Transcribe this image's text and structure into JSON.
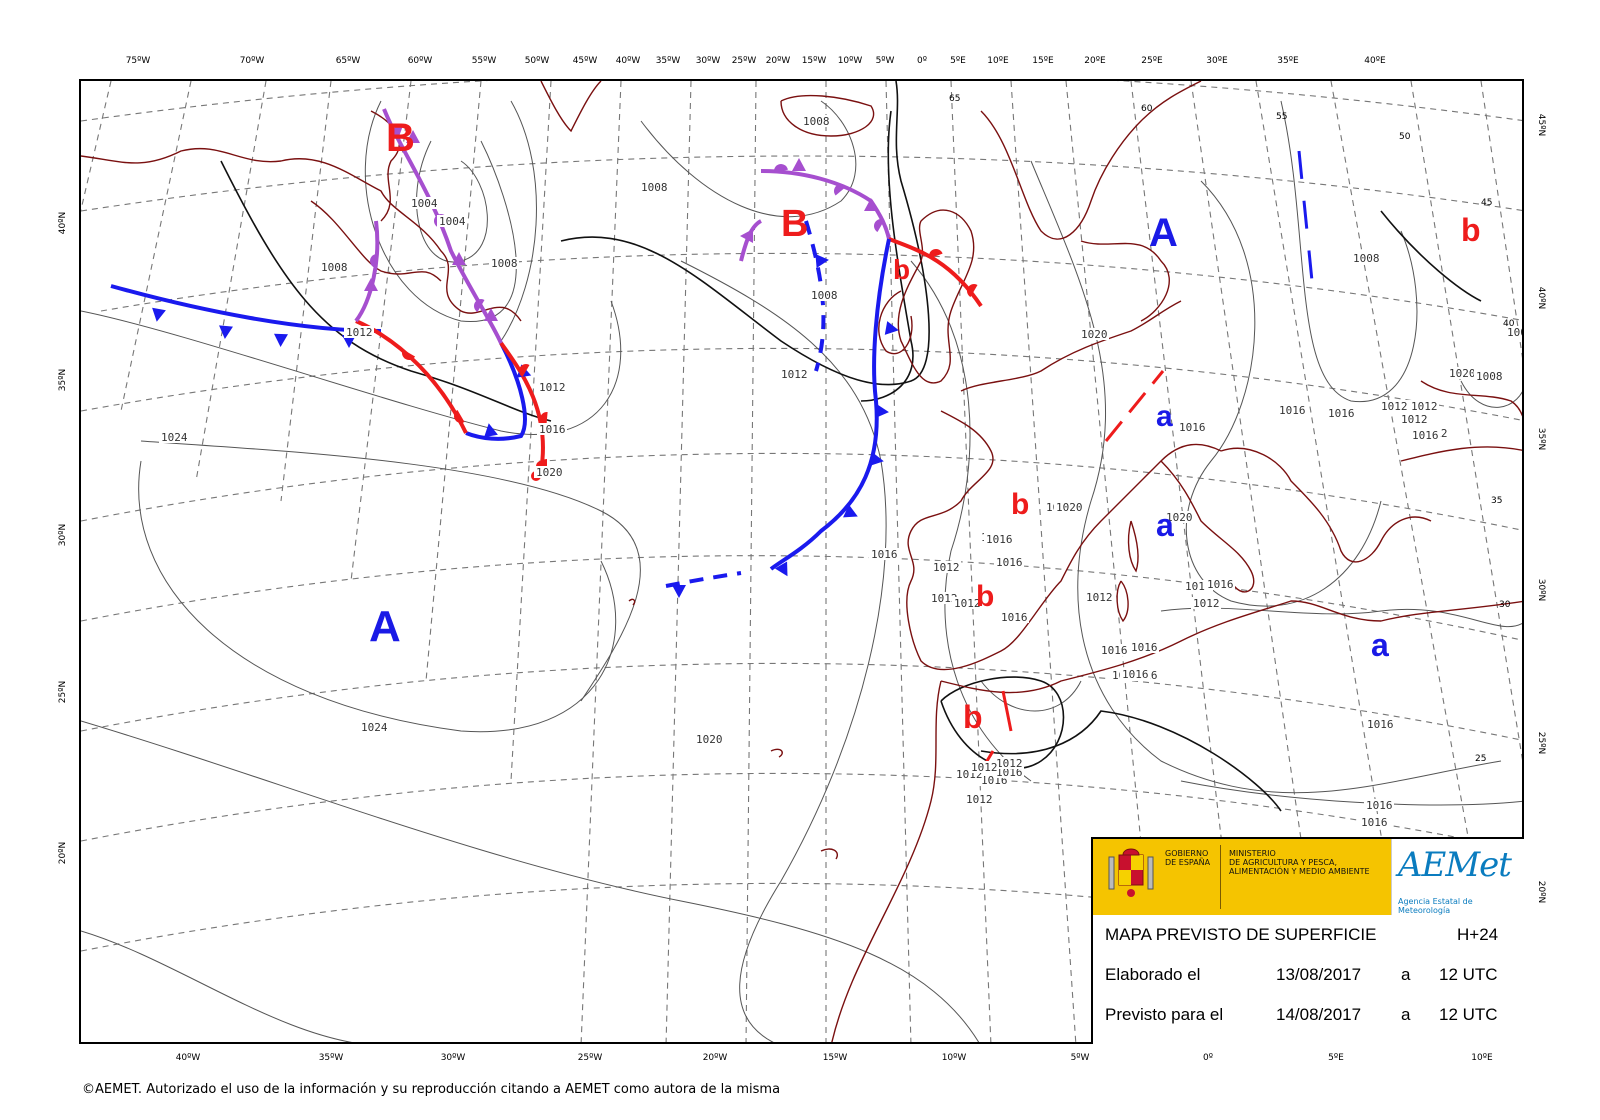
{
  "map": {
    "top_longitudes": [
      "75ºW",
      "70ºW",
      "65ºW",
      "60ºW",
      "55ºW",
      "50ºW",
      "45ºW",
      "40ºW",
      "35ºW",
      "30ºW",
      "25ºW",
      "20ºW",
      "15ºW",
      "10ºW",
      "5ºW",
      "0º",
      "5ºE",
      "10ºE",
      "15ºE",
      "20ºE",
      "25ºE",
      "30ºE",
      "35ºE",
      "40ºE"
    ],
    "bottom_longitudes": [
      "40ºW",
      "35ºW",
      "30ºW",
      "25ºW",
      "20ºW",
      "15ºW",
      "10ºW",
      "5ºW",
      "0º",
      "5ºE",
      "10ºE"
    ],
    "left_latitudes": [
      "40ºN",
      "35ºN",
      "30ºN",
      "25ºN",
      "20ºN"
    ],
    "right_latitudes": [
      "45ºN",
      "40ºN",
      "35ºN",
      "30ºN",
      "25ºN",
      "20ºN"
    ],
    "inner_lat_labels": [
      "65",
      "60",
      "55",
      "50",
      "45",
      "40",
      "35",
      "30",
      "25"
    ],
    "isobar_labels": [
      "1008",
      "1008",
      "1004",
      "1004",
      "1008",
      "1008",
      "1012",
      "1016",
      "1020",
      "1012",
      "1008",
      "1012",
      "1024",
      "1024",
      "1020",
      "1016",
      "1016",
      "1012",
      "1016",
      "1020",
      "1016",
      "1016",
      "1012",
      "1012",
      "1012",
      "1016",
      "1016",
      "1012",
      "1012",
      "1012",
      "1012",
      "1012",
      "1012",
      "1016",
      "1016",
      "1016",
      "1016",
      "1016",
      "1016",
      "1016",
      "1016",
      "1020",
      "1020",
      "1020",
      "1020",
      "1008",
      "1012",
      "1012",
      "1016",
      "1012",
      "1012",
      "1016",
      "1016",
      "1016",
      "1016",
      "1008",
      "1004"
    ],
    "pressure_centers": [
      {
        "label": "B",
        "kind": "low"
      },
      {
        "label": "B",
        "kind": "low"
      },
      {
        "label": "b",
        "kind": "low"
      },
      {
        "label": "A",
        "kind": "high"
      },
      {
        "label": "b",
        "kind": "low"
      },
      {
        "label": "A",
        "kind": "high"
      },
      {
        "label": "a",
        "kind": "high"
      },
      {
        "label": "b",
        "kind": "low"
      },
      {
        "label": "a",
        "kind": "high"
      },
      {
        "label": "b",
        "kind": "low"
      },
      {
        "label": "b",
        "kind": "low"
      },
      {
        "label": "a",
        "kind": "high"
      }
    ],
    "colors": {
      "low": "#ee1c1c",
      "high": "#1a1ae6",
      "coast": "#7a1010",
      "warm_front": "#ee1c1c",
      "cold_front": "#1a1aee",
      "occluded_front": "#a64fcf",
      "isobar": "#555555",
      "graticule": "#777777"
    }
  },
  "legend": {
    "gov_text": "GOBIERNO\nDE ESPAÑA",
    "ministry_text": "MINISTERIO\nDE AGRICULTURA Y PESCA,\nALIMENTACIÓN Y MEDIO AMBIENTE",
    "aemet_logo_text": "AEMet",
    "aemet_subtitle": "Agencia Estatal de Meteorología",
    "title": "MAPA PREVISTO DE SUPERFICIE",
    "lead_time": "H+24",
    "made_label": "Elaborado el",
    "made_date": "13/08/2017",
    "made_at": "a",
    "made_time": "12 UTC",
    "valid_label": "Previsto para el",
    "valid_date": "14/08/2017",
    "valid_at": "a",
    "valid_time": "12 UTC"
  },
  "footer": {
    "copyright": "©AEMET. Autorizado el uso de la información y su reproducción citando a AEMET como autora de la misma"
  }
}
